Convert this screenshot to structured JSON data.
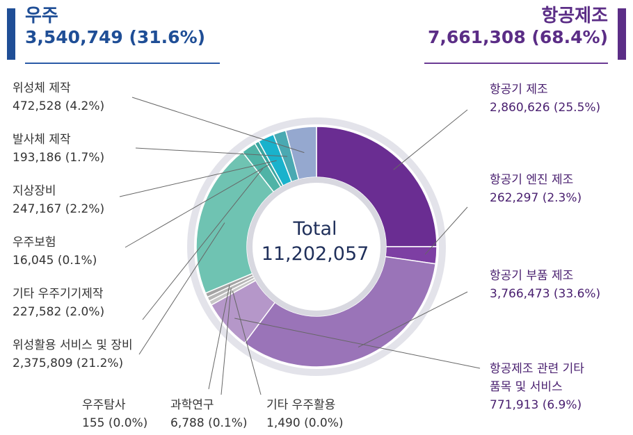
{
  "header": {
    "space": {
      "title": "우주",
      "value": "3,540,749 (31.6%)",
      "color": "#1f4e96"
    },
    "aero": {
      "title": "항공제조",
      "value": "7,661,308 (68.4%)",
      "color": "#5b2d86"
    }
  },
  "chart_data": {
    "type": "pie",
    "variant": "donut",
    "total_label": "Total",
    "total_value": "11,202,057",
    "total": 11202057,
    "slices": [
      {
        "name": "항공기 제조",
        "value": 2860626,
        "percent": 25.5,
        "display": "2,860,626 (25.5%)",
        "color": "#6a2d92"
      },
      {
        "name": "항공기 엔진 제조",
        "value": 262297,
        "percent": 2.3,
        "display": "262,297 (2.3%)",
        "color": "#7d3fa3"
      },
      {
        "name": "항공기 부품 제조",
        "value": 3766473,
        "percent": 33.6,
        "display": "3,766,473 (33.6%)",
        "color": "#9a74b8"
      },
      {
        "name": "항공제조 관련 기타 품목 및 서비스",
        "name_lines": [
          "항공제조 관련 기타",
          "품목 및 서비스"
        ],
        "value": 771913,
        "percent": 6.9,
        "display": "771,913 (6.9%)",
        "color": "#b597c9"
      },
      {
        "name": "기타 우주활용",
        "value": 1490,
        "percent": 0.0,
        "display": "1,490 (0.0%)",
        "color": "#c7c7c7"
      },
      {
        "name": "과학연구",
        "value": 6788,
        "percent": 0.1,
        "display": "6,788 (0.1%)",
        "color": "#b5b5b5"
      },
      {
        "name": "우주탐사",
        "value": 155,
        "percent": 0.0,
        "display": "155 (0.0%)",
        "color": "#a3a3a3"
      },
      {
        "name": "위성활용 서비스 및 장비",
        "value": 2375809,
        "percent": 21.2,
        "display": "2,375,809 (21.2%)",
        "color": "#6fc3b2"
      },
      {
        "name": "기타 우주기기제작",
        "value": 227582,
        "percent": 2.0,
        "display": "227,582 (2.0%)",
        "color": "#4fb3a6"
      },
      {
        "name": "우주보험",
        "value": 16045,
        "percent": 0.1,
        "display": "16,045 (0.1%)",
        "color": "#3aa6a0"
      },
      {
        "name": "지상장비",
        "value": 247167,
        "percent": 2.2,
        "display": "247,167 (2.2%)",
        "color": "#19b2cc"
      },
      {
        "name": "발사체 제작",
        "value": 193186,
        "percent": 1.7,
        "display": "193,186 (1.7%)",
        "color": "#4aa9b2"
      },
      {
        "name": "위성체 제작",
        "value": 472528,
        "percent": 4.2,
        "display": "472,528 (4.2%)",
        "color": "#95a8cf"
      }
    ]
  }
}
